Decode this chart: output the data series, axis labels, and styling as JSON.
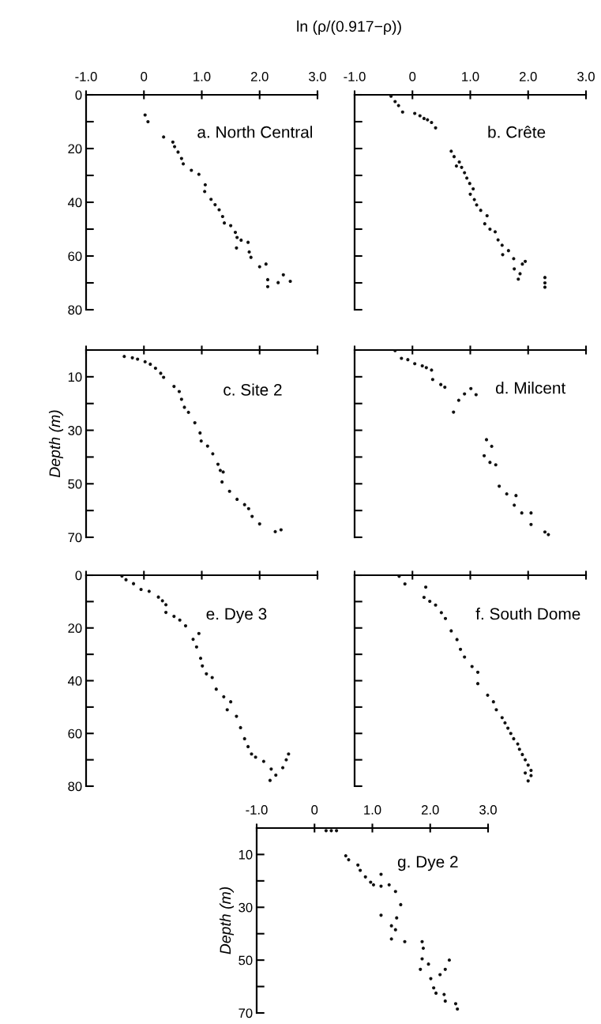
{
  "chart_data": [
    {
      "type": "scatter",
      "title": "a. North Central",
      "xlabel": "ln (ρ/(0.917−ρ))",
      "marker": "circle",
      "xlim": [
        -1.0,
        3.0
      ],
      "ylim": [
        80,
        0
      ],
      "xticks": [
        {
          "value": -1.0,
          "label": "-1.0"
        },
        0,
        {
          "value": 1.0,
          "label": "1.0"
        },
        {
          "value": 2.0,
          "label": "2.0"
        },
        {
          "value": 3.0,
          "label": "3.0"
        }
      ],
      "yticks": [
        0,
        {
          "value": 10,
          "label": null
        },
        20,
        {
          "value": 30,
          "label": null
        },
        40,
        {
          "value": 50,
          "label": null
        },
        60,
        {
          "value": 70,
          "label": null
        },
        80
      ],
      "series": [
        {
          "color": "#111111",
          "x": [
            0.02,
            0.07,
            0.34,
            0.5,
            0.53,
            0.59,
            0.65,
            0.68,
            0.82,
            0.95,
            1.06,
            1.05,
            1.16,
            1.23,
            1.3,
            1.36,
            1.39,
            1.5,
            1.58,
            1.61,
            1.68,
            1.8,
            1.6,
            1.82,
            1.85,
            2.0,
            2.11,
            2.14,
            2.14,
            2.32,
            2.41,
            2.53
          ],
          "values": [
            7.5,
            10,
            15.7,
            17.6,
            19.3,
            21.3,
            23.7,
            25.7,
            28.1,
            29.6,
            33.5,
            36,
            38.9,
            40.9,
            42.8,
            45.3,
            47.7,
            48.7,
            51.2,
            53.1,
            54.1,
            54.9,
            57,
            58.5,
            60.5,
            64,
            63,
            68.8,
            71.4,
            69.9,
            67,
            69.4
          ]
        }
      ]
    },
    {
      "type": "scatter",
      "title": "b. Crête",
      "marker": "circle",
      "tick_labels": "x",
      "xlim": [
        -1.0,
        3.0
      ],
      "ylim": [
        80,
        0
      ],
      "xticks": [
        {
          "value": -1.0,
          "label": "-1.0"
        },
        0,
        {
          "value": 1.0,
          "label": "1.0"
        },
        {
          "value": 2.0,
          "label": "2.0"
        },
        {
          "value": 3.0,
          "label": "3.0"
        }
      ],
      "yticks": [
        0,
        10,
        20,
        30,
        40,
        50,
        60,
        70,
        80
      ],
      "series": [
        {
          "color": "#111111",
          "x": [
            -0.37,
            -0.3,
            -0.24,
            -0.17,
            0.04,
            0.13,
            0.2,
            0.26,
            0.33,
            0.4,
            0.67,
            0.72,
            0.81,
            0.76,
            0.85,
            0.9,
            0.94,
            0.99,
            1.05,
            1.0,
            1.07,
            1.11,
            1.18,
            1.29,
            1.25,
            1.34,
            1.43,
            1.48,
            1.55,
            1.66,
            1.56,
            1.75,
            1.9,
            1.95,
            1.76,
            1.86,
            1.83,
            2.29,
            2.29,
            2.29
          ],
          "values": [
            0.5,
            2.5,
            4,
            6.4,
            6.9,
            7.8,
            8.8,
            9.3,
            10.3,
            12.3,
            21,
            23,
            25,
            26.5,
            27,
            29,
            31,
            33,
            35,
            37,
            39,
            41,
            43,
            45,
            48,
            50,
            51,
            54,
            56,
            58,
            59.5,
            61,
            63,
            62,
            64.8,
            66.6,
            68.6,
            68,
            70,
            71.6
          ]
        }
      ]
    },
    {
      "type": "scatter",
      "title": "c. Site 2",
      "ylabel": "Depth (m)",
      "marker": "circle",
      "tick_labels": "y",
      "xlim": [
        -1.0,
        3.0
      ],
      "ylim": [
        70,
        0
      ],
      "xticks": [
        -1.0,
        0,
        1.0,
        2.0,
        3.0
      ],
      "yticks": [
        {
          "value": 0,
          "label": null
        },
        10,
        {
          "value": 20,
          "label": null
        },
        30,
        {
          "value": 40,
          "label": null
        },
        50,
        {
          "value": 60,
          "label": null
        },
        70
      ],
      "series": [
        {
          "color": "#111111",
          "x": [
            -0.34,
            -0.2,
            -0.11,
            0.02,
            0.11,
            0.2,
            0.29,
            0.34,
            0.52,
            0.61,
            0.65,
            0.7,
            0.77,
            0.88,
            0.97,
            0.99,
            1.1,
            1.19,
            1.28,
            1.32,
            1.37,
            1.35,
            1.48,
            1.61,
            1.74,
            1.81,
            1.87,
            2.0,
            2.27,
            2.37
          ],
          "values": [
            2.4,
            2.9,
            3.4,
            4.4,
            5.3,
            6.8,
            8.7,
            10.2,
            13.6,
            15.5,
            18.4,
            21.4,
            23.3,
            27.2,
            31,
            34,
            35.9,
            38.8,
            42.7,
            45,
            45.6,
            49.3,
            52.8,
            55.8,
            57.8,
            59.3,
            62.2,
            65,
            67.9,
            67.2
          ]
        }
      ]
    },
    {
      "type": "scatter",
      "title": "d. Milcent",
      "marker": "circle",
      "tick_labels": false,
      "xlim": [
        -1.0,
        3.0
      ],
      "ylim": [
        70,
        0
      ],
      "xticks": [
        -1.0,
        0,
        1.0,
        2.0,
        3.0
      ],
      "yticks": [
        0,
        10,
        20,
        30,
        40,
        50,
        60,
        70
      ],
      "series": [
        {
          "color": "#111111",
          "x": [
            -0.3,
            -0.19,
            -0.08,
            0.04,
            0.17,
            0.24,
            0.33,
            0.35,
            0.49,
            0.56,
            0.71,
            0.8,
            0.9,
            1.01,
            1.1,
            1.28,
            1.37,
            1.24,
            1.34,
            1.44,
            1.5,
            1.63,
            1.79,
            1.76,
            1.89,
            2.05,
            2.05,
            2.29,
            2.35
          ],
          "values": [
            0.2,
            3.1,
            3.6,
            5.1,
            5.9,
            6.6,
            7.5,
            11,
            12.9,
            13.9,
            23.2,
            18.8,
            16.4,
            14.4,
            16.7,
            33.5,
            36,
            39.5,
            42,
            42.9,
            50.9,
            53.8,
            54.4,
            58,
            60.9,
            60.9,
            65.2,
            68,
            69
          ]
        }
      ]
    },
    {
      "type": "scatter",
      "title": "e. Dye 3",
      "marker": "circle",
      "tick_labels": "y",
      "xlim": [
        -1.0,
        3.0
      ],
      "ylim": [
        80,
        0
      ],
      "xticks": [
        -1.0,
        0,
        1.0,
        2.0,
        3.0
      ],
      "yticks": [
        0,
        {
          "value": 10,
          "label": null
        },
        20,
        {
          "value": 30,
          "label": null
        },
        40,
        {
          "value": 50,
          "label": null
        },
        60,
        {
          "value": 70,
          "label": null
        },
        80
      ],
      "series": [
        {
          "color": "#111111",
          "x": [
            -0.38,
            -0.31,
            -0.18,
            -0.05,
            0.09,
            0.25,
            0.32,
            0.38,
            0.38,
            0.52,
            0.62,
            0.72,
            0.95,
            0.85,
            0.91,
            0.98,
            1.01,
            1.08,
            1.18,
            1.25,
            1.38,
            1.5,
            1.44,
            1.6,
            1.67,
            1.74,
            1.8,
            1.86,
            1.93,
            2.07,
            2.2,
            2.28,
            2.18,
            2.4,
            2.46,
            2.5
          ],
          "values": [
            0.3,
            1.7,
            3.2,
            5.4,
            6.1,
            8.3,
            9.7,
            11.2,
            14.1,
            15.6,
            17,
            19.2,
            22.1,
            24.3,
            27.2,
            31.5,
            34.4,
            37.4,
            38.8,
            43.2,
            46.1,
            48,
            51,
            53.5,
            57.8,
            62,
            65,
            67.8,
            69,
            70.6,
            73.5,
            75.8,
            77.8,
            73,
            70,
            67.8
          ]
        }
      ]
    },
    {
      "type": "scatter",
      "title": "f. South Dome",
      "marker": "circle",
      "tick_labels": false,
      "xlim": [
        -1.0,
        3.0
      ],
      "ylim": [
        80,
        0
      ],
      "xticks": [
        -1.0,
        0,
        1.0,
        2.0,
        3.0
      ],
      "yticks": [
        0,
        10,
        20,
        30,
        40,
        50,
        60,
        70,
        80
      ],
      "series": [
        {
          "color": "#111111",
          "x": [
            -0.23,
            -0.13,
            0.23,
            0.2,
            0.3,
            0.4,
            0.5,
            0.57,
            0.67,
            0.77,
            0.83,
            0.9,
            1.03,
            1.13,
            1.13,
            1.3,
            1.4,
            1.45,
            1.55,
            1.6,
            1.65,
            1.7,
            1.75,
            1.82,
            1.85,
            1.9,
            1.95,
            2.0,
            2.05,
            1.95,
            2.05,
            2.0
          ],
          "values": [
            0.4,
            3.3,
            4.5,
            8.4,
            9.9,
            11.3,
            14.2,
            16.4,
            21.1,
            24.4,
            28.1,
            31,
            34.6,
            36.8,
            41.1,
            45.5,
            48,
            51,
            54,
            56,
            58,
            60,
            62,
            64,
            66,
            68,
            70,
            72,
            74,
            75,
            76,
            78
          ]
        }
      ]
    },
    {
      "type": "scatter",
      "title": "g. Dye 2",
      "ylabel": "Depth (m)",
      "marker": "circle",
      "xlim": [
        -1.0,
        3.0
      ],
      "ylim": [
        70,
        0
      ],
      "xticks": [
        {
          "value": -1.0,
          "label": "-1.0"
        },
        0,
        {
          "value": 1.0,
          "label": "1.0"
        },
        {
          "value": 2.0,
          "label": "2.0"
        },
        {
          "value": 3.0,
          "label": "3.0"
        }
      ],
      "yticks": [
        {
          "value": 0,
          "label": null
        },
        10,
        {
          "value": 20,
          "label": null
        },
        30,
        {
          "value": 40,
          "label": null
        },
        50,
        {
          "value": 60,
          "label": null
        },
        70
      ],
      "series": [
        {
          "color": "#111111",
          "x": [
            0.2,
            0.29,
            0.38,
            0.54,
            0.59,
            0.75,
            0.79,
            0.88,
            0.97,
            1.02,
            1.15,
            1.15,
            1.29,
            1.4,
            1.49,
            1.15,
            1.42,
            1.33,
            1.4,
            1.33,
            1.56,
            1.86,
            1.88,
            1.86,
            1.83,
            1.97,
            2.33,
            2.26,
            2.17,
            2.01,
            2.06,
            2.1,
            2.24,
            2.26,
            2.44,
            2.47
          ],
          "values": [
            1,
            1,
            1,
            10.5,
            12,
            14,
            16,
            18.5,
            20.5,
            21.5,
            17.5,
            22,
            21.5,
            24,
            29,
            33,
            34,
            37,
            38.5,
            42,
            43,
            43,
            45.5,
            49.5,
            53.5,
            51.5,
            50,
            53.5,
            55.5,
            57,
            60.5,
            62.5,
            63,
            65.5,
            66.5,
            68.5
          ]
        }
      ]
    }
  ]
}
